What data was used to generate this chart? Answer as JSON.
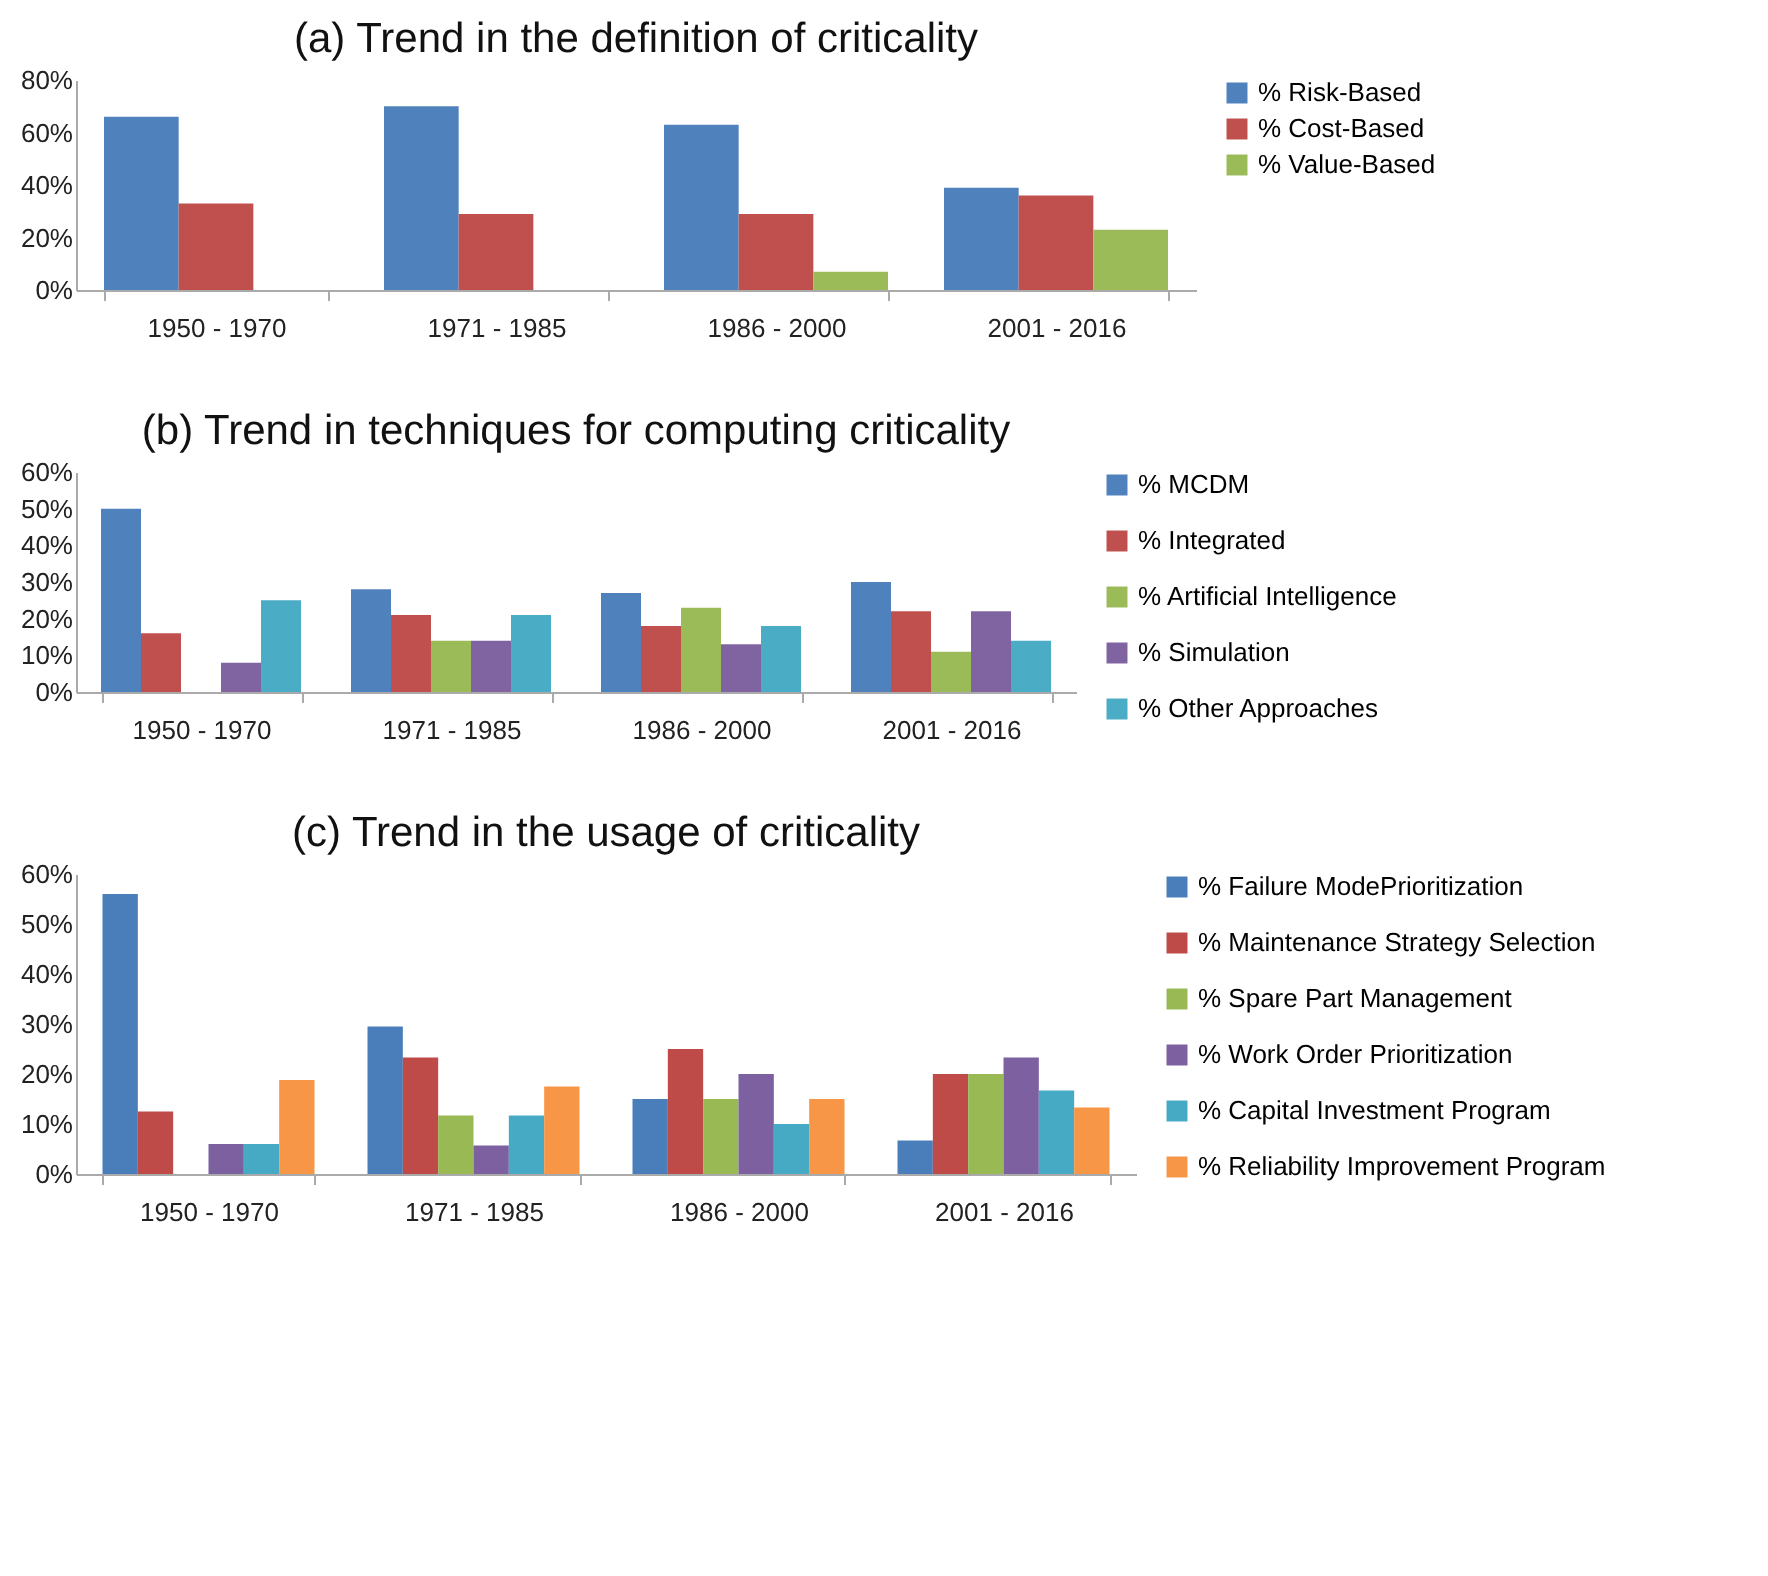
{
  "chart_data": [
    {
      "type": "bar",
      "title": "(a) Trend in the definition of criticality",
      "categories": [
        "1950 - 1970",
        "1971 - 1985",
        "1986 - 2000",
        "2001 - 2016"
      ],
      "series": [
        {
          "name": "% Risk-Based",
          "color": "#4f81bd",
          "values": [
            66,
            70,
            63,
            39
          ]
        },
        {
          "name": "% Cost-Based",
          "color": "#c0504d",
          "values": [
            33,
            29,
            29,
            36
          ]
        },
        {
          "name": "% Value-Based",
          "color": "#9bbb59",
          "values": [
            null,
            null,
            7,
            23
          ]
        }
      ],
      "ylim": [
        0,
        80
      ],
      "yticks": [
        {
          "value": 0,
          "label": "0%"
        },
        {
          "value": 20,
          "label": "20%"
        },
        {
          "value": 40,
          "label": "40%"
        },
        {
          "value": 60,
          "label": "60%"
        },
        {
          "value": 80,
          "label": "80%"
        }
      ],
      "grid": false,
      "legend": "top right"
    },
    {
      "type": "bar",
      "title": "(b) Trend in techniques for computing criticality",
      "categories": [
        "1950 - 1970",
        "1971 - 1985",
        "1986 - 2000",
        "2001 - 2016"
      ],
      "series": [
        {
          "name": "% MCDM",
          "color": "#4f81bd",
          "values": [
            50,
            28,
            27,
            30
          ]
        },
        {
          "name": "% Integrated",
          "color": "#c0504d",
          "values": [
            16,
            21,
            18,
            22
          ]
        },
        {
          "name": "% Artificial Intelligence",
          "color": "#9bbb59",
          "values": [
            null,
            14,
            23,
            11
          ]
        },
        {
          "name": "% Simulation",
          "color": "#8064a2",
          "values": [
            8,
            14,
            13,
            22
          ]
        },
        {
          "name": "% Other Approaches",
          "color": "#4bacc6",
          "values": [
            25,
            21,
            18,
            14
          ]
        }
      ],
      "ylim": [
        0,
        60
      ],
      "yticks": [
        {
          "value": 0,
          "label": "0%"
        },
        {
          "value": 10,
          "label": "10%"
        },
        {
          "value": 20,
          "label": "20%"
        },
        {
          "value": 30,
          "label": "30%"
        },
        {
          "value": 40,
          "label": "40%"
        },
        {
          "value": 50,
          "label": "50%"
        },
        {
          "value": 60,
          "label": "60%"
        }
      ],
      "grid": false,
      "legend": "right"
    },
    {
      "type": "bar",
      "title": "(c) Trend in the usage of criticality",
      "categories": [
        "1950 - 1970",
        "1971 - 1985",
        "1986 - 2000",
        "2001 - 2016"
      ],
      "series": [
        {
          "name": "% Failure ModePrioritization",
          "color": "#4a7ebb",
          "values": [
            56,
            29.5,
            15,
            6.7
          ]
        },
        {
          "name": "% Maintenance Strategy Selection",
          "color": "#be4b48",
          "values": [
            12.5,
            23.3,
            25,
            20
          ]
        },
        {
          "name": "% Spare Part Management",
          "color": "#98b954",
          "values": [
            null,
            11.7,
            15,
            20
          ]
        },
        {
          "name": "% Work Order Prioritization",
          "color": "#7d60a0",
          "values": [
            6,
            5.7,
            20,
            23.3
          ]
        },
        {
          "name": "% Capital Investment Program",
          "color": "#46aac5",
          "values": [
            6,
            11.7,
            10,
            16.7
          ]
        },
        {
          "name": "% Reliability Improvement Program",
          "color": "#f79646",
          "values": [
            18.8,
            17.5,
            15,
            13.3
          ]
        }
      ],
      "ylim": [
        0,
        60
      ],
      "yticks": [
        {
          "value": 0,
          "label": "0%"
        },
        {
          "value": 10,
          "label": "10%"
        },
        {
          "value": 20,
          "label": "20%"
        },
        {
          "value": 30,
          "label": "30%"
        },
        {
          "value": 40,
          "label": "40%"
        },
        {
          "value": 50,
          "label": "50%"
        },
        {
          "value": 60,
          "label": "60%"
        }
      ],
      "grid": false,
      "legend": "right"
    }
  ]
}
